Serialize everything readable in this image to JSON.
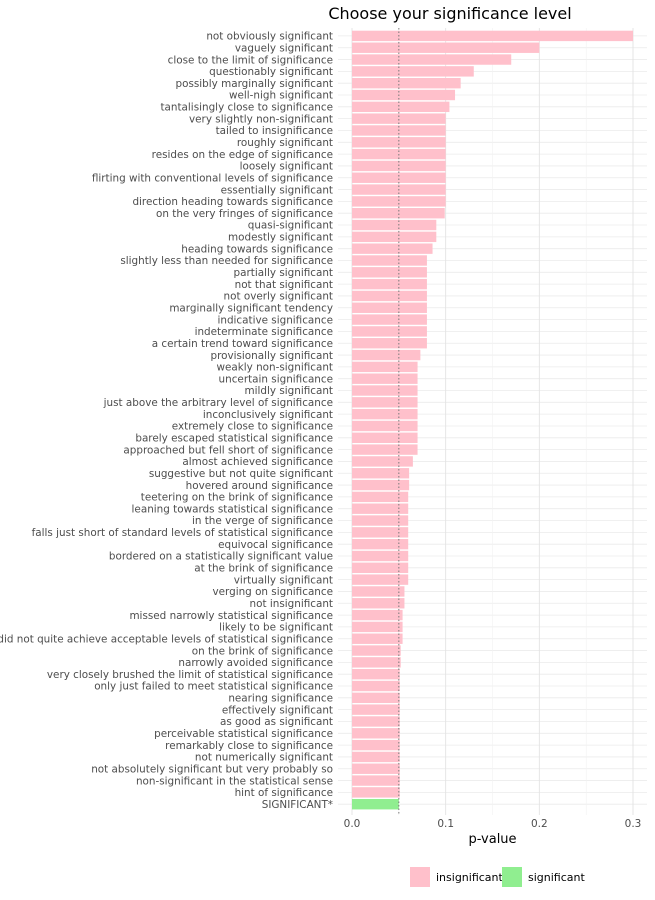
{
  "chart_data": {
    "type": "bar",
    "orientation": "horizontal",
    "title": "Choose your significance level",
    "xlabel": "p-value",
    "ylabel": "",
    "xlim": [
      0,
      0.3
    ],
    "xticks": [
      "0.0",
      "0.1",
      "0.2",
      "0.3"
    ],
    "threshold": 0.05,
    "grid": true,
    "legend_placement": "bottom",
    "colors": {
      "insignificant": "#ffc0cb",
      "significant": "#90ee90"
    },
    "legend": [
      {
        "key": "insignificant",
        "label": "insignificant"
      },
      {
        "key": "significant",
        "label": "significant"
      }
    ],
    "bars": [
      {
        "label": "not obviously significant",
        "value": 0.3,
        "group": "insignificant"
      },
      {
        "label": "vaguely significant",
        "value": 0.2,
        "group": "insignificant"
      },
      {
        "label": "close to the limit of significance",
        "value": 0.17,
        "group": "insignificant"
      },
      {
        "label": "questionably significant",
        "value": 0.13,
        "group": "insignificant"
      },
      {
        "label": "possibly marginally significant",
        "value": 0.116,
        "group": "insignificant"
      },
      {
        "label": "well-nigh significant",
        "value": 0.11,
        "group": "insignificant"
      },
      {
        "label": "tantalisingly close to significance",
        "value": 0.104,
        "group": "insignificant"
      },
      {
        "label": "very slightly non-significant",
        "value": 0.1,
        "group": "insignificant"
      },
      {
        "label": "tailed to insignificance",
        "value": 0.1,
        "group": "insignificant"
      },
      {
        "label": "roughly significant",
        "value": 0.1,
        "group": "insignificant"
      },
      {
        "label": "resides on the edge of significance",
        "value": 0.1,
        "group": "insignificant"
      },
      {
        "label": "loosely significant",
        "value": 0.1,
        "group": "insignificant"
      },
      {
        "label": "flirting with conventional levels of significance",
        "value": 0.1,
        "group": "insignificant"
      },
      {
        "label": "essentially significant",
        "value": 0.1,
        "group": "insignificant"
      },
      {
        "label": "direction heading towards significance",
        "value": 0.1,
        "group": "insignificant"
      },
      {
        "label": "on the very fringes of significance",
        "value": 0.099,
        "group": "insignificant"
      },
      {
        "label": "quasi-significant",
        "value": 0.09,
        "group": "insignificant"
      },
      {
        "label": "modestly significant",
        "value": 0.09,
        "group": "insignificant"
      },
      {
        "label": "heading towards significance",
        "value": 0.086,
        "group": "insignificant"
      },
      {
        "label": "slightly less than needed for significance",
        "value": 0.08,
        "group": "insignificant"
      },
      {
        "label": "partially significant",
        "value": 0.08,
        "group": "insignificant"
      },
      {
        "label": "not that significant",
        "value": 0.08,
        "group": "insignificant"
      },
      {
        "label": "not overly significant",
        "value": 0.08,
        "group": "insignificant"
      },
      {
        "label": "marginally significant tendency",
        "value": 0.08,
        "group": "insignificant"
      },
      {
        "label": "indicative significance",
        "value": 0.08,
        "group": "insignificant"
      },
      {
        "label": "indeterminate significance",
        "value": 0.08,
        "group": "insignificant"
      },
      {
        "label": "a certain trend toward significance",
        "value": 0.08,
        "group": "insignificant"
      },
      {
        "label": "provisionally significant",
        "value": 0.073,
        "group": "insignificant"
      },
      {
        "label": "weakly non-significant",
        "value": 0.07,
        "group": "insignificant"
      },
      {
        "label": "uncertain significance",
        "value": 0.07,
        "group": "insignificant"
      },
      {
        "label": "mildly significant",
        "value": 0.07,
        "group": "insignificant"
      },
      {
        "label": "just above the arbitrary level of significance",
        "value": 0.07,
        "group": "insignificant"
      },
      {
        "label": "inconclusively significant",
        "value": 0.07,
        "group": "insignificant"
      },
      {
        "label": "extremely close to significance",
        "value": 0.07,
        "group": "insignificant"
      },
      {
        "label": "barely escaped statistical significance",
        "value": 0.07,
        "group": "insignificant"
      },
      {
        "label": "approached but fell short of significance",
        "value": 0.07,
        "group": "insignificant"
      },
      {
        "label": "almost achieved significance",
        "value": 0.065,
        "group": "insignificant"
      },
      {
        "label": "suggestive but not quite significant",
        "value": 0.061,
        "group": "insignificant"
      },
      {
        "label": "hovered around significance",
        "value": 0.061,
        "group": "insignificant"
      },
      {
        "label": "teetering on the brink of significance",
        "value": 0.06,
        "group": "insignificant"
      },
      {
        "label": "leaning towards statistical significance",
        "value": 0.06,
        "group": "insignificant"
      },
      {
        "label": "in the verge of significance",
        "value": 0.06,
        "group": "insignificant"
      },
      {
        "label": "falls just short of standard levels of statistical significance",
        "value": 0.06,
        "group": "insignificant"
      },
      {
        "label": "equivocal significance",
        "value": 0.06,
        "group": "insignificant"
      },
      {
        "label": "bordered on a statistically significant value",
        "value": 0.06,
        "group": "insignificant"
      },
      {
        "label": "at the brink of significance",
        "value": 0.06,
        "group": "insignificant"
      },
      {
        "label": "virtually significant",
        "value": 0.06,
        "group": "insignificant"
      },
      {
        "label": "verging on significance",
        "value": 0.056,
        "group": "insignificant"
      },
      {
        "label": "not insignificant",
        "value": 0.056,
        "group": "insignificant"
      },
      {
        "label": "missed narrowly statistical significance",
        "value": 0.054,
        "group": "insignificant"
      },
      {
        "label": "likely to be significant",
        "value": 0.054,
        "group": "insignificant"
      },
      {
        "label": "did not quite achieve acceptable levels of statistical significance",
        "value": 0.054,
        "group": "insignificant"
      },
      {
        "label": "on the brink of significance",
        "value": 0.052,
        "group": "insignificant"
      },
      {
        "label": "narrowly avoided significance",
        "value": 0.052,
        "group": "insignificant"
      },
      {
        "label": "very closely brushed the limit of statistical significance",
        "value": 0.051,
        "group": "insignificant"
      },
      {
        "label": "only just failed to meet statistical significance",
        "value": 0.051,
        "group": "insignificant"
      },
      {
        "label": "nearing significance",
        "value": 0.051,
        "group": "insignificant"
      },
      {
        "label": "effectively significant",
        "value": 0.051,
        "group": "insignificant"
      },
      {
        "label": "as good as significant",
        "value": 0.051,
        "group": "insignificant"
      },
      {
        "label": "perceivable statistical significance",
        "value": 0.051,
        "group": "insignificant"
      },
      {
        "label": "remarkably close to significance",
        "value": 0.051,
        "group": "insignificant"
      },
      {
        "label": "not numerically significant",
        "value": 0.051,
        "group": "insignificant"
      },
      {
        "label": "not absolutely significant but very probably so",
        "value": 0.051,
        "group": "insignificant"
      },
      {
        "label": "non-significant in the statistical sense",
        "value": 0.051,
        "group": "insignificant"
      },
      {
        "label": "hint of significance",
        "value": 0.051,
        "group": "insignificant"
      },
      {
        "label": "SIGNIFICANT*",
        "value": 0.05,
        "group": "significant"
      }
    ]
  }
}
